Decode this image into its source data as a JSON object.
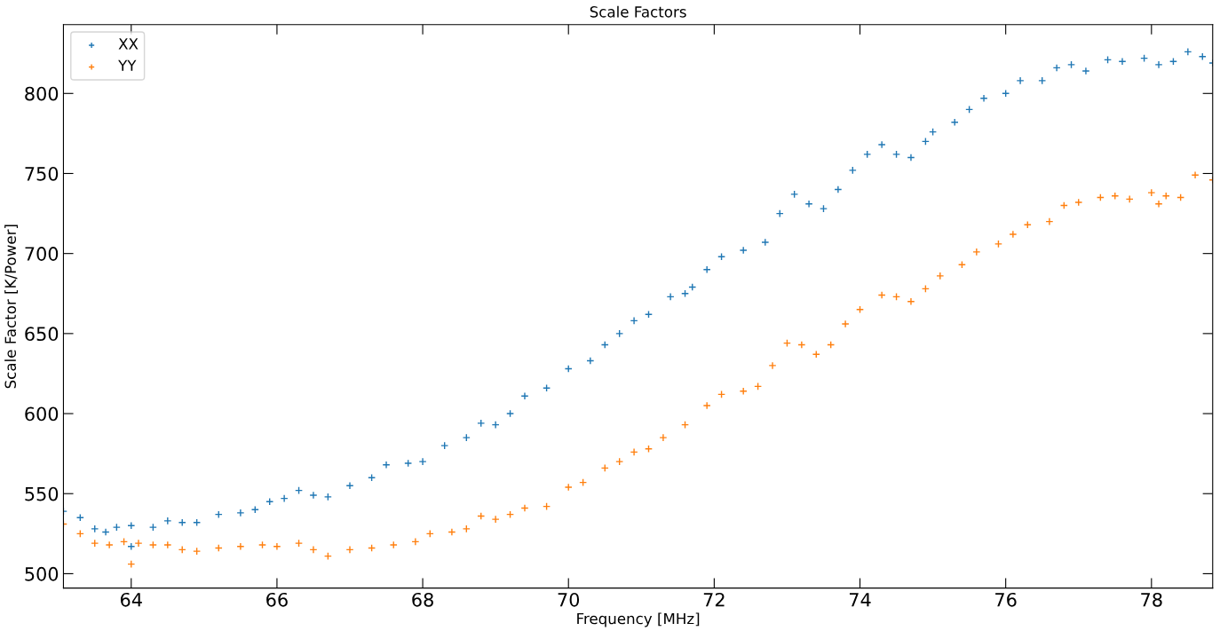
{
  "chart_data": {
    "type": "scatter",
    "title": "Scale Factors",
    "xlabel": "Frequency [MHz]",
    "ylabel": "Scale Factor [K/Power]",
    "xlim": [
      63.07,
      78.84
    ],
    "xticks": [
      64,
      66,
      68,
      70,
      72,
      74,
      76,
      78
    ],
    "ylim": [
      491,
      843
    ],
    "yticks": [
      500,
      550,
      600,
      650,
      700,
      750,
      800
    ],
    "marker": "cross",
    "legend": "top left",
    "grid": false,
    "series": [
      {
        "name": "XX",
        "color": "#1f77b4",
        "x": [
          63.07,
          63.3,
          63.5,
          63.65,
          63.8,
          64.0,
          64.0,
          64.3,
          64.5,
          64.7,
          64.9,
          65.2,
          65.5,
          65.7,
          65.9,
          66.1,
          66.3,
          66.5,
          66.7,
          67.0,
          67.3,
          67.5,
          67.8,
          68.0,
          68.3,
          68.6,
          68.8,
          69.0,
          69.2,
          69.4,
          69.7,
          70.0,
          70.3,
          70.5,
          70.7,
          70.9,
          71.1,
          71.4,
          71.6,
          71.7,
          71.9,
          72.1,
          72.4,
          72.7,
          72.9,
          73.1,
          73.3,
          73.5,
          73.7,
          73.9,
          74.1,
          74.3,
          74.5,
          74.7,
          74.9,
          75.0,
          75.3,
          75.5,
          75.7,
          76.0,
          76.2,
          76.5,
          76.7,
          76.9,
          77.1,
          77.4,
          77.6,
          77.9,
          78.1,
          78.3,
          78.5,
          78.7,
          78.84
        ],
        "values": [
          539,
          535,
          528,
          526,
          529,
          530,
          517,
          529,
          533,
          532,
          532,
          537,
          538,
          540,
          545,
          547,
          552,
          549,
          548,
          555,
          560,
          568,
          569,
          570,
          580,
          585,
          594,
          593,
          600,
          611,
          616,
          628,
          633,
          643,
          650,
          658,
          662,
          673,
          675,
          679,
          690,
          698,
          702,
          707,
          725,
          737,
          731,
          728,
          740,
          752,
          762,
          768,
          762,
          760,
          770,
          776,
          782,
          790,
          797,
          800,
          808,
          808,
          816,
          818,
          814,
          821,
          820,
          822,
          818,
          820,
          826,
          823,
          819
        ]
      },
      {
        "name": "YY",
        "color": "#ff7f0e",
        "x": [
          63.07,
          63.3,
          63.5,
          63.7,
          63.9,
          64.0,
          64.1,
          64.3,
          64.5,
          64.7,
          64.9,
          65.2,
          65.5,
          65.8,
          66.0,
          66.3,
          66.5,
          66.7,
          67.0,
          67.3,
          67.6,
          67.9,
          68.1,
          68.4,
          68.6,
          68.8,
          69.0,
          69.2,
          69.4,
          69.7,
          70.0,
          70.2,
          70.5,
          70.7,
          70.9,
          71.1,
          71.3,
          71.6,
          71.9,
          72.1,
          72.4,
          72.6,
          72.8,
          73.0,
          73.2,
          73.4,
          73.6,
          73.8,
          74.0,
          74.3,
          74.5,
          74.7,
          74.9,
          75.1,
          75.4,
          75.6,
          75.9,
          76.1,
          76.3,
          76.6,
          76.8,
          77.0,
          77.3,
          77.5,
          77.7,
          78.0,
          78.1,
          78.2,
          78.4,
          78.6,
          78.84
        ],
        "values": [
          531,
          525,
          519,
          518,
          520,
          506,
          519,
          518,
          518,
          515,
          514,
          516,
          517,
          518,
          517,
          519,
          515,
          511,
          515,
          516,
          518,
          520,
          525,
          526,
          528,
          536,
          534,
          537,
          541,
          542,
          554,
          557,
          566,
          570,
          576,
          578,
          585,
          593,
          605,
          612,
          614,
          617,
          630,
          644,
          643,
          637,
          643,
          656,
          665,
          674,
          673,
          670,
          678,
          686,
          693,
          701,
          706,
          712,
          718,
          720,
          730,
          732,
          735,
          736,
          734,
          738,
          731,
          736,
          735,
          749,
          746
        ]
      }
    ]
  }
}
